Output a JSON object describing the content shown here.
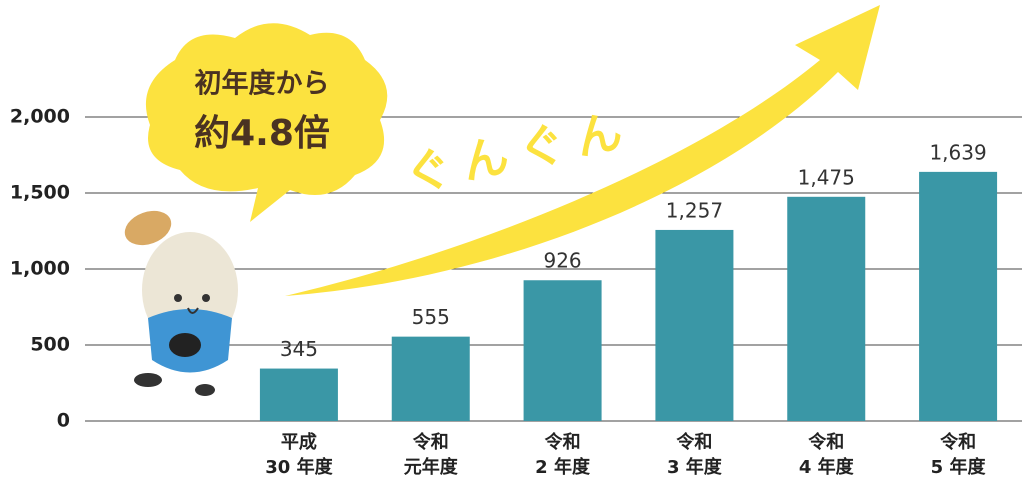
{
  "chart_data": {
    "type": "bar",
    "categories": [
      [
        "平成",
        "30 年度"
      ],
      [
        "令和",
        "元年度"
      ],
      [
        "令和",
        "2 年度"
      ],
      [
        "令和",
        "3 年度"
      ],
      [
        "令和",
        "4 年度"
      ],
      [
        "令和",
        "5 年度"
      ]
    ],
    "values": [
      345,
      555,
      926,
      1257,
      1475,
      1639
    ],
    "value_labels": [
      "345",
      "555",
      "926",
      "1,257",
      "1,475",
      "1,639"
    ],
    "color": "#3a97a6",
    "ylim": [
      0,
      2000
    ],
    "yticks": [
      0,
      500,
      {
        "value": 1000,
        "label": "1,000"
      },
      {
        "value": 1500,
        "label": "1,500"
      },
      {
        "value": 2000,
        "label": "2,000"
      }
    ],
    "grid": true,
    "annotations": {
      "callout": [
        "初年度から",
        "約4.8倍"
      ],
      "arrow": "ぐんぐん"
    }
  }
}
